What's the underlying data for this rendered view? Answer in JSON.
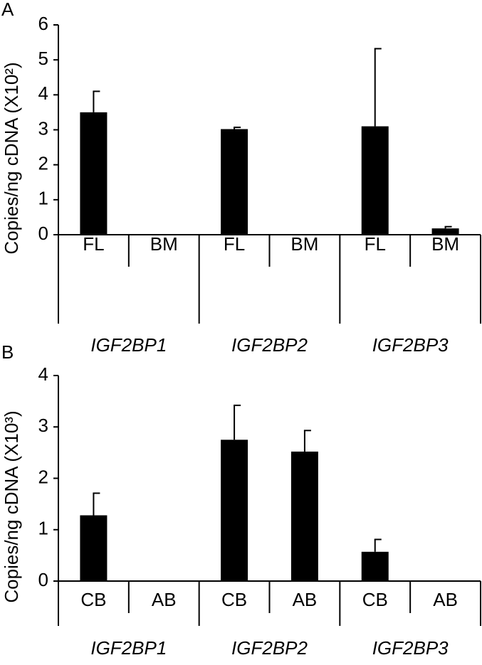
{
  "chart_data": [
    {
      "type": "bar",
      "panel": "A",
      "ylabel": "Copies/ng cDNA (X10²)",
      "categories": [
        "FL",
        "BM",
        "FL",
        "BM",
        "FL",
        "BM"
      ],
      "groups": [
        "IGF2BP1",
        "IGF2BP2",
        "IGF2BP3"
      ],
      "values": [
        3.5,
        0,
        3.02,
        0,
        3.1,
        0.18
      ],
      "errors": [
        0.6,
        0,
        0.05,
        0,
        2.22,
        0.05
      ],
      "color": "#000000",
      "ylim": [
        0,
        6
      ],
      "yticks": [
        0,
        1,
        2,
        3,
        4,
        5,
        6
      ]
    },
    {
      "type": "bar",
      "panel": "B",
      "ylabel": "Copies/ng cDNA (X10³)",
      "categories": [
        "CB",
        "AB",
        "CB",
        "AB",
        "CB",
        "AB"
      ],
      "groups": [
        "IGF2BP1",
        "IGF2BP2",
        "IGF2BP3"
      ],
      "values": [
        1.28,
        0,
        2.75,
        2.52,
        0.57,
        0
      ],
      "errors": [
        0.43,
        0,
        0.67,
        0.41,
        0.24,
        0
      ],
      "color": "#000000",
      "ylim": [
        0,
        4
      ],
      "yticks": [
        0,
        1,
        2,
        3,
        4
      ]
    }
  ]
}
